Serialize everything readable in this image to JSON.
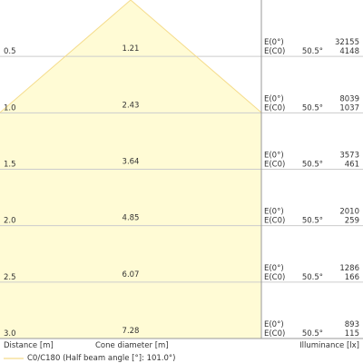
{
  "chart_data": {
    "type": "area",
    "title": "",
    "xlabel": "Cone diameter [m]",
    "ylabel": "Distance [m]",
    "illuminance_label": "Illuminance [lx]",
    "ylim": [
      0,
      3.0
    ],
    "series": [
      {
        "name": "C0/C180 (Half beam angle [°]: 101.0°)",
        "color": "#f5dc8c",
        "fill": "#fffbd5"
      }
    ],
    "rows": [
      {
        "distance": "0.5",
        "diameter": "1.21",
        "e0_label": "E(0°)",
        "ec0_label": "E(C0)",
        "angle": "50.5°",
        "e0": "32155",
        "ec0": "4148"
      },
      {
        "distance": "1.0",
        "diameter": "2.43",
        "e0_label": "E(0°)",
        "ec0_label": "E(C0)",
        "angle": "50.5°",
        "e0": "8039",
        "ec0": "1037"
      },
      {
        "distance": "1.5",
        "diameter": "3.64",
        "e0_label": "E(0°)",
        "ec0_label": "E(C0)",
        "angle": "50.5°",
        "e0": "3573",
        "ec0": "461"
      },
      {
        "distance": "2.0",
        "diameter": "4.85",
        "e0_label": "E(0°)",
        "ec0_label": "E(C0)",
        "angle": "50.5°",
        "e0": "2010",
        "ec0": "259"
      },
      {
        "distance": "2.5",
        "diameter": "6.07",
        "e0_label": "E(0°)",
        "ec0_label": "E(C0)",
        "angle": "50.5°",
        "e0": "1286",
        "ec0": "166"
      },
      {
        "distance": "3.0",
        "diameter": "7.28",
        "e0_label": "E(0°)",
        "ec0_label": "E(C0)",
        "angle": "50.5°",
        "e0": "893",
        "ec0": "115"
      }
    ],
    "grid": true,
    "legend_position": "bottom-left"
  },
  "colors": {
    "grid": "#cccccc",
    "divider": "#999999"
  }
}
